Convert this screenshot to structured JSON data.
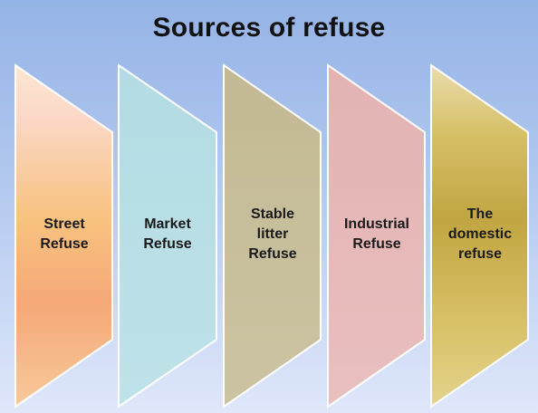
{
  "title": "Sources of refuse",
  "sources": [
    {
      "label": "Street\nRefuse",
      "color": "#f7c08a"
    },
    {
      "label": "Market\nRefuse",
      "color": "#b8dfe6"
    },
    {
      "label": "Stable\nlitter\nRefuse",
      "color": "#c6bd98"
    },
    {
      "label": "Industrial\nRefuse",
      "color": "#e6b8b7"
    },
    {
      "label": "The\ndomestic\nrefuse",
      "color": "#d9c35f"
    }
  ]
}
